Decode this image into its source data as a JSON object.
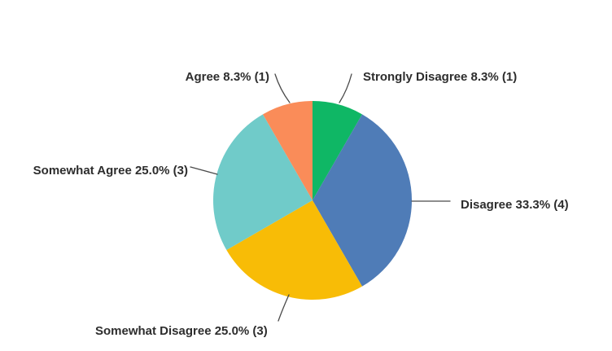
{
  "chart_data": {
    "type": "pie",
    "title": "",
    "legend_position": "none",
    "label_style": "callout-labels-with-leader-lines",
    "background_color": "#ffffff",
    "label_text_color": "#2d2d2d",
    "leader_line_color": "#4a4a4a",
    "start_angle_deg": 0,
    "direction": "clockwise",
    "slices": [
      {
        "label": "Strongly Disagree",
        "percent": 8.3,
        "count": 1,
        "display": "Strongly Disagree 8.3% (1)",
        "color": "#0fb765"
      },
      {
        "label": "Disagree",
        "percent": 33.3,
        "count": 4,
        "display": "Disagree 33.3% (4)",
        "color": "#4f7cb7"
      },
      {
        "label": "Somewhat Disagree",
        "percent": 25.0,
        "count": 3,
        "display": "Somewhat Disagree 25.0% (3)",
        "color": "#f8bc06"
      },
      {
        "label": "Somewhat Agree",
        "percent": 25.0,
        "count": 3,
        "display": "Somewhat Agree 25.0% (3)",
        "color": "#70cbc9"
      },
      {
        "label": "Agree",
        "percent": 8.3,
        "count": 1,
        "display": "Agree 8.3% (1)",
        "color": "#fa8c59"
      }
    ]
  }
}
